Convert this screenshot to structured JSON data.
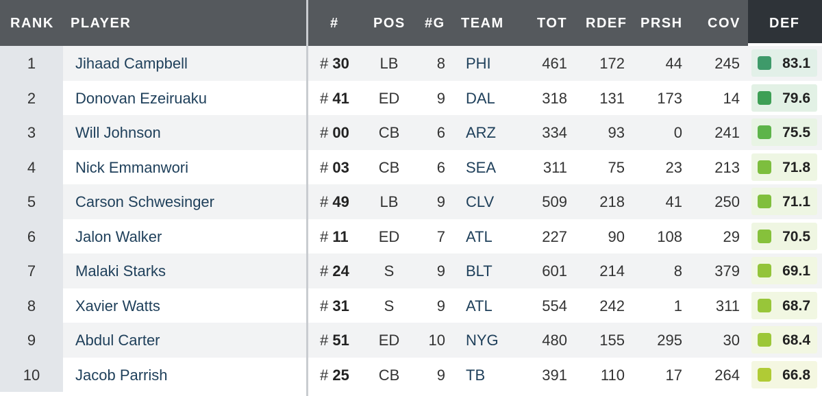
{
  "headers": {
    "rank": "RANK",
    "player": "PLAYER",
    "jersey": "#",
    "pos": "POS",
    "games": "#G",
    "team": "TEAM",
    "tot": "TOT",
    "rdef": "RDEF",
    "prsh": "PRSH",
    "cov": "COV",
    "def": "DEF"
  },
  "jersey_prefix": "#",
  "rows": [
    {
      "rank": "1",
      "player": "Jihaad Campbell",
      "jersey": "30",
      "pos": "LB",
      "games": "8",
      "team": "PHI",
      "tot": "461",
      "rdef": "172",
      "prsh": "44",
      "cov": "245",
      "def": "83.1",
      "swatch": "#3e9a6a",
      "tint": "#e2f0e8"
    },
    {
      "rank": "2",
      "player": "Donovan Ezeiruaku",
      "jersey": "41",
      "pos": "ED",
      "games": "9",
      "team": "DAL",
      "tot": "318",
      "rdef": "131",
      "prsh": "173",
      "cov": "14",
      "def": "79.6",
      "swatch": "#3d9f55",
      "tint": "#e2f1e5"
    },
    {
      "rank": "3",
      "player": "Will Johnson",
      "jersey": "00",
      "pos": "CB",
      "games": "6",
      "team": "ARZ",
      "tot": "334",
      "rdef": "93",
      "prsh": "0",
      "cov": "241",
      "def": "75.5",
      "swatch": "#5db44a",
      "tint": "#e8f4e4"
    },
    {
      "rank": "4",
      "player": "Nick Emmanwori",
      "jersey": "03",
      "pos": "CB",
      "games": "6",
      "team": "SEA",
      "tot": "311",
      "rdef": "75",
      "prsh": "23",
      "cov": "213",
      "def": "71.8",
      "swatch": "#7dbe3e",
      "tint": "#eef6e3"
    },
    {
      "rank": "5",
      "player": "Carson Schwesinger",
      "jersey": "49",
      "pos": "LB",
      "games": "9",
      "team": "CLV",
      "tot": "509",
      "rdef": "218",
      "prsh": "41",
      "cov": "250",
      "def": "71.1",
      "swatch": "#80bf3d",
      "tint": "#eef6e3"
    },
    {
      "rank": "6",
      "player": "Jalon Walker",
      "jersey": "11",
      "pos": "ED",
      "games": "7",
      "team": "ATL",
      "tot": "227",
      "rdef": "90",
      "prsh": "108",
      "cov": "29",
      "def": "70.5",
      "swatch": "#86c13b",
      "tint": "#eff6e2"
    },
    {
      "rank": "7",
      "player": "Malaki Starks",
      "jersey": "24",
      "pos": "S",
      "games": "9",
      "team": "BLT",
      "tot": "601",
      "rdef": "214",
      "prsh": "8",
      "cov": "379",
      "def": "69.1",
      "swatch": "#93c43a",
      "tint": "#f1f7e2"
    },
    {
      "rank": "8",
      "player": "Xavier Watts",
      "jersey": "31",
      "pos": "S",
      "games": "9",
      "team": "ATL",
      "tot": "554",
      "rdef": "242",
      "prsh": "1",
      "cov": "311",
      "def": "68.7",
      "swatch": "#98c639",
      "tint": "#f1f7e2"
    },
    {
      "rank": "9",
      "player": "Abdul Carter",
      "jersey": "51",
      "pos": "ED",
      "games": "10",
      "team": "NYG",
      "tot": "480",
      "rdef": "155",
      "prsh": "295",
      "cov": "30",
      "def": "68.4",
      "swatch": "#9cc738",
      "tint": "#f2f7e2"
    },
    {
      "rank": "10",
      "player": "Jacob Parrish",
      "jersey": "25",
      "pos": "CB",
      "games": "9",
      "team": "TB",
      "tot": "391",
      "rdef": "110",
      "prsh": "17",
      "cov": "264",
      "def": "66.8",
      "swatch": "#b0cb35",
      "tint": "#f4f7e1"
    }
  ]
}
